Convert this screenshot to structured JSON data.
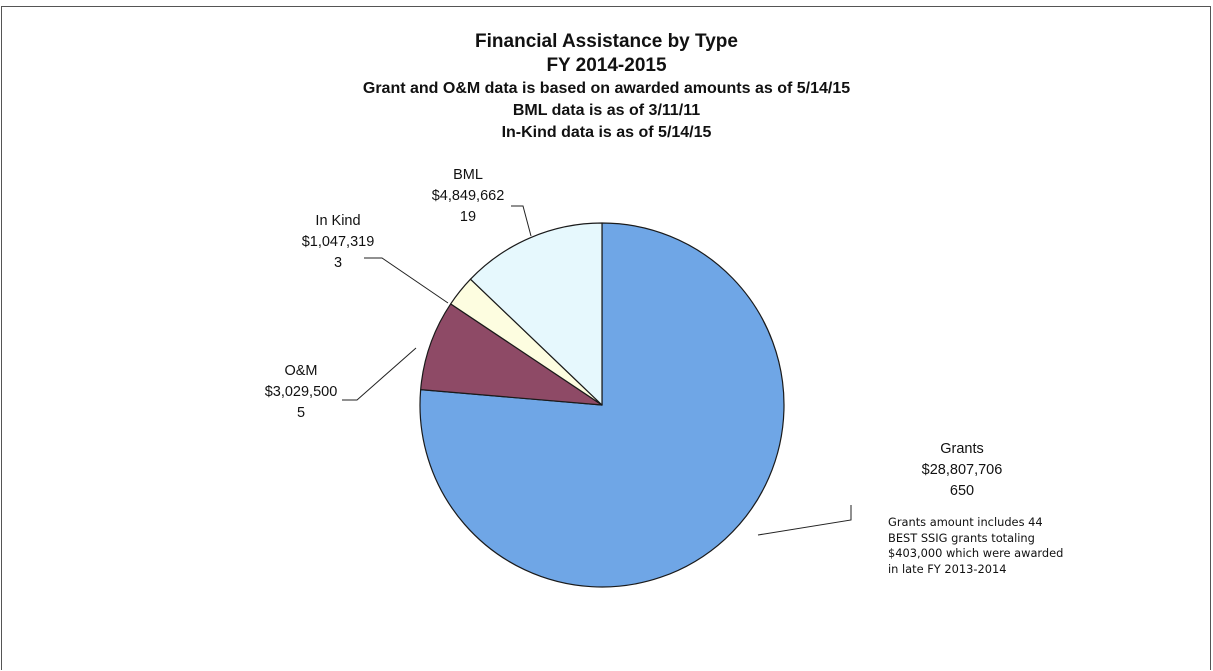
{
  "titles": {
    "line1": "Financial Assistance by Type",
    "line2": "FY 2014-2015",
    "line3": "Grant and O&M data is based on awarded amounts as of 5/14/15",
    "line4": "BML data is as of 3/11/11",
    "line5": "In-Kind data is as of 5/14/15"
  },
  "note": {
    "lines": [
      "Grants amount includes 44",
      "BEST SSIG grants totaling",
      "$403,000 which were awarded",
      "in late FY 2013-2014"
    ]
  },
  "chart_data": {
    "type": "pie",
    "title": "Financial Assistance by Type",
    "slices": [
      {
        "label": "Grants",
        "amount": "$28,807,706",
        "count": "650",
        "value": 28807706,
        "color": "#6fa6e6"
      },
      {
        "label": "O&M",
        "amount": "$3,029,500",
        "count": "5",
        "value": 3029500,
        "color": "#8e4a66"
      },
      {
        "label": "In Kind",
        "amount": "$1,047,319",
        "count": "3",
        "value": 1047319,
        "color": "#fdfde0"
      },
      {
        "label": "BML",
        "amount": "$4,849,662",
        "count": "19",
        "value": 4849662,
        "color": "#e6f8fd"
      }
    ]
  }
}
